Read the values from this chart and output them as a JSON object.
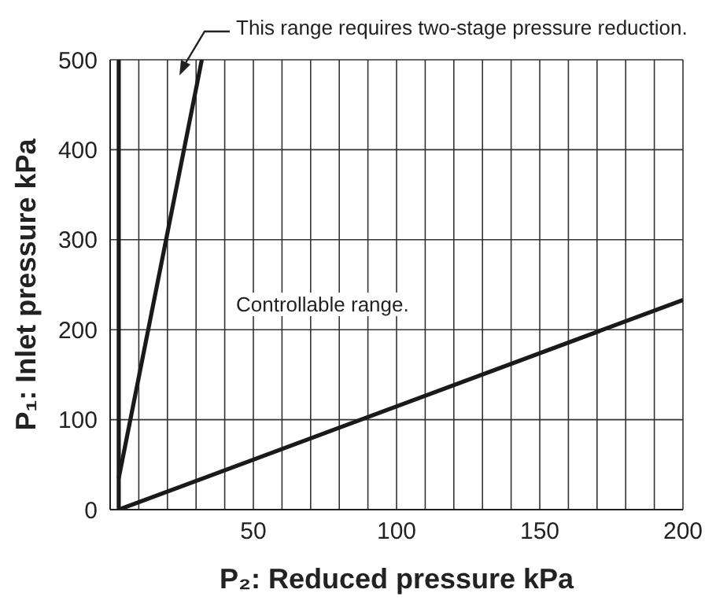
{
  "chart_data": {
    "type": "line",
    "xlabel": "P₂: Reduced pressure kPa",
    "ylabel": "P₁: Inlet pressure kPa",
    "annotations": [
      "This range requires two-stage pressure reduction.",
      "Controllable range."
    ],
    "series": [
      {
        "color": "#1a1a1a",
        "x": [
          3,
          3
        ],
        "values": [
          0,
          500
        ]
      },
      {
        "color": "#1a1a1a",
        "x": [
          3,
          32
        ],
        "values": [
          35,
          500
        ]
      },
      {
        "color": "#1a1a1a",
        "x": [
          3,
          200
        ],
        "values": [
          0,
          233
        ]
      }
    ],
    "xlim": [
      0,
      200
    ],
    "xticks": [
      {
        "value": 10,
        "label": null
      },
      {
        "value": 20,
        "label": null
      },
      {
        "value": 30,
        "label": null
      },
      {
        "value": 40,
        "label": null
      },
      50,
      {
        "value": 60,
        "label": null
      },
      {
        "value": 70,
        "label": null
      },
      {
        "value": 80,
        "label": null
      },
      {
        "value": 90,
        "label": null
      },
      100,
      {
        "value": 110,
        "label": null
      },
      {
        "value": 120,
        "label": null
      },
      {
        "value": 130,
        "label": null
      },
      {
        "value": 140,
        "label": null
      },
      150,
      {
        "value": 160,
        "label": null
      },
      {
        "value": 170,
        "label": null
      },
      {
        "value": 180,
        "label": null
      },
      {
        "value": 190,
        "label": null
      },
      200
    ],
    "ylim": [
      0,
      500
    ],
    "yticks": [
      0,
      100,
      200,
      300,
      400,
      500
    ],
    "grid": true,
    "legend": false,
    "marker": "none",
    "line_style": "solid"
  }
}
